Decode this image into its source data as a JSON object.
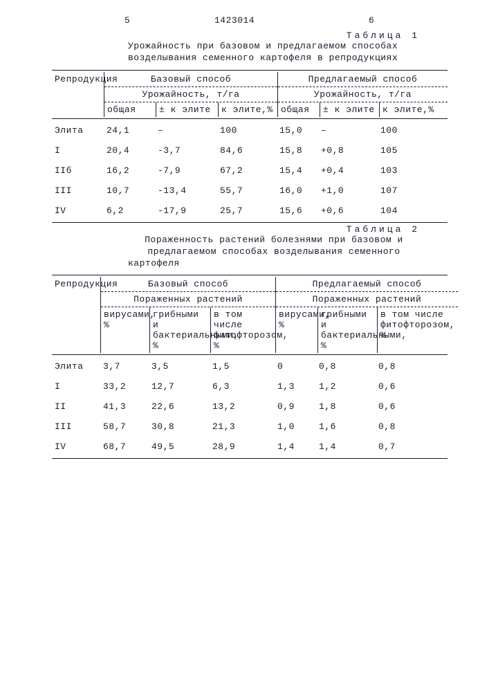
{
  "page_left": "5",
  "page_mid": "1423014",
  "page_right": "6",
  "table1": {
    "label": "Таблица 1",
    "caption": "Урожайность при базовом и предлагаемом способах возделывания семенного картофеля в репродукциях",
    "h_rep": "Репродукция",
    "h_base": "Базовый способ",
    "h_prop": "Предлагаемый способ",
    "h_yield_b": "Урожайность, т/га",
    "h_yield_p": "Урожайность, т/га",
    "h_total": "общая",
    "h_pm": "± к элите",
    "h_pct": "к элите,%",
    "h_total2": "общая",
    "h_pm2": "± к элите",
    "h_pct2": "к элите,%",
    "rows": [
      {
        "rep": "Элита",
        "b1": "24,1",
        "b2": "–",
        "b3": "100",
        "p1": "15,0",
        "p2": "–",
        "p3": "100"
      },
      {
        "rep": "I",
        "b1": "20,4",
        "b2": "-3,7",
        "b3": "84,6",
        "p1": "15,8",
        "p2": "+0,8",
        "p3": "105"
      },
      {
        "rep": "IIб",
        "b1": "16,2",
        "b2": "-7,9",
        "b3": "67,2",
        "p1": "15,4",
        "p2": "+0,4",
        "p3": "103"
      },
      {
        "rep": "III",
        "b1": "10,7",
        "b2": "-13,4",
        "b3": "55,7",
        "p1": "16,0",
        "p2": "+1,0",
        "p3": "107"
      },
      {
        "rep": "IV",
        "b1": "6,2",
        "b2": "-17,9",
        "b3": "25,7",
        "p1": "15,6",
        "p2": "+0,6",
        "p3": "104"
      }
    ]
  },
  "table2": {
    "label": "Таблица 2",
    "caption": "Пораженность растений болезнями при базовом и предлагаемом способах возделывания семенного картофеля",
    "h_rep": "Репродукция",
    "h_base": "Базовый способ",
    "h_prop": "Предлагаемый способ",
    "h_aff_b": "Пораженных растений",
    "h_aff_p": "Пораженных растений",
    "h_v": "вирусами, %",
    "h_g": "грибными и бактериальными, %",
    "h_f": "в том числе фитофторозом, %",
    "h_v2": "вирусами, %",
    "h_g2": "грибными и бактериальными, %",
    "h_f2": "в том числе фитофторозом, %",
    "rows": [
      {
        "rep": "Элита",
        "b1": "3,7",
        "b2": "3,5",
        "b3": "1,5",
        "p1": "0",
        "p2": "0,8",
        "p3": "0,8"
      },
      {
        "rep": "I",
        "b1": "33,2",
        "b2": "12,7",
        "b3": "6,3",
        "p1": "1,3",
        "p2": "1,2",
        "p3": "0,6"
      },
      {
        "rep": "II",
        "b1": "41,3",
        "b2": "22,6",
        "b3": "13,2",
        "p1": "0,9",
        "p2": "1,8",
        "p3": "0,6"
      },
      {
        "rep": "III",
        "b1": "58,7",
        "b2": "30,8",
        "b3": "21,3",
        "p1": "1,0",
        "p2": "1,6",
        "p3": "0,8"
      },
      {
        "rep": "IV",
        "b1": "68,7",
        "b2": "49,5",
        "b3": "28,9",
        "p1": "1,4",
        "p2": "1,4",
        "p3": "0,7"
      }
    ]
  }
}
